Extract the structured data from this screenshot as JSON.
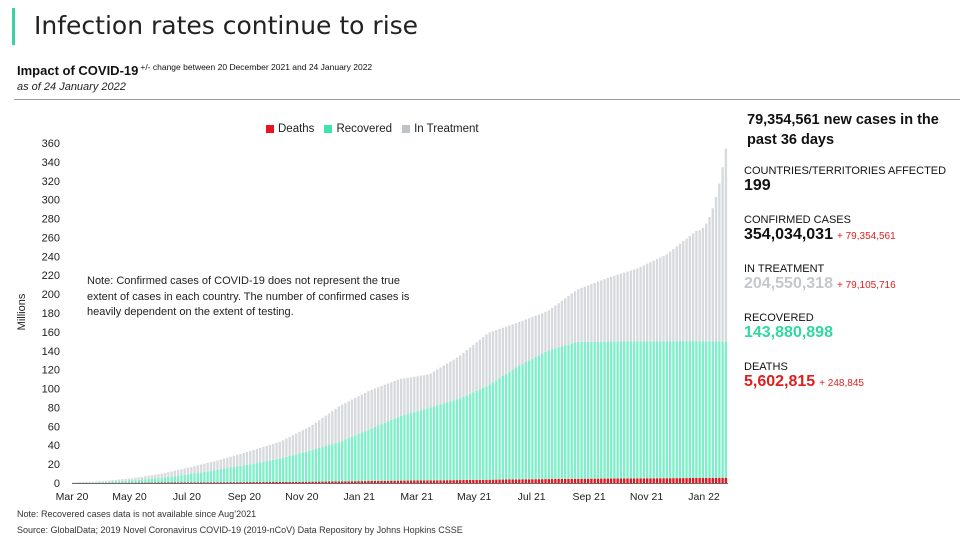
{
  "header": {
    "title": "Infection rates continue to rise",
    "subtitle": "Impact of COVID-19",
    "change_note": "+/- change between 20 December 2021 and 24 January 2022",
    "as_of": "as of 24 January 2022"
  },
  "colors": {
    "accent": "#3ecfa7",
    "deaths": "#e8141e",
    "recovered": "#7fefc9",
    "in_treatment": "#d7dadd",
    "treatment_value": "#c4c8cc",
    "recovered_value": "#2fd9a0",
    "deaths_value": "#e02020"
  },
  "note": "Note: Confirmed cases of COVID-19 does not represent the true extent of cases in each country. The number of confirmed cases is heavily dependent on the extent of testing.",
  "footnote": "Note: Recovered cases data is not available since Aug’2021",
  "source": "Source: GlobalData; 2019 Novel Coronavirus COVID-19 (2019-nCoV) Data Repository by Johns Hopkins CSSE",
  "stats": {
    "headline": "79,354,561 new cases in the past 36 days",
    "countries_label": "COUNTRIES/TERRITORIES AFFECTED",
    "countries_value": "199",
    "confirmed_label": "CONFIRMED CASES",
    "confirmed_value": "354,034,031",
    "confirmed_change": "+ 79,354,561",
    "treatment_label": "IN TREATMENT",
    "treatment_value": "204,550,318",
    "treatment_change": "+ 79,105,716",
    "recovered_label": "RECOVERED",
    "recovered_value": "143,880,898",
    "deaths_label": "DEATHS",
    "deaths_value": "5,602,815",
    "deaths_change": "+ 248,845"
  },
  "chart_data": {
    "type": "bar",
    "stacked": true,
    "ylabel": "Millions",
    "ylim": [
      0,
      360
    ],
    "yticks": [
      "0",
      "20",
      "40",
      "60",
      "80",
      "100",
      "120",
      "140",
      "160",
      "180",
      "200",
      "220",
      "240",
      "260",
      "280",
      "300",
      "320",
      "340",
      "360"
    ],
    "xtick_labels": [
      "Mar 20",
      "May 20",
      "Jul 20",
      "Sep 20",
      "Nov 20",
      "Jan 21",
      "Mar 21",
      "May 21",
      "Jul 21",
      "Sep 21",
      "Nov 21",
      "Jan 22"
    ],
    "legend": [
      "Deaths",
      "Recovered",
      "In Treatment"
    ],
    "legend_position": "top-center",
    "grid": false,
    "categories": [
      "Mar 20",
      "Apr 20",
      "May 20",
      "Jun 20",
      "Jul 20",
      "Aug 20",
      "Sep 20",
      "Oct 20",
      "Nov 20",
      "Dec 20",
      "Jan 21",
      "Feb 21",
      "Mar 21",
      "Apr 21",
      "May 21",
      "Jun 21",
      "Jul 21",
      "Aug 21",
      "Sep 21",
      "Oct 21",
      "Nov 21",
      "Dec 21",
      "Jan 22"
    ],
    "series": [
      {
        "name": "Deaths",
        "values": [
          0.04,
          0.2,
          0.35,
          0.5,
          0.65,
          0.8,
          0.95,
          1.1,
          1.35,
          1.7,
          2.1,
          2.5,
          2.75,
          3.1,
          3.45,
          3.85,
          4.15,
          4.45,
          4.7,
          4.9,
          5.1,
          5.3,
          5.6
        ]
      },
      {
        "name": "Recovered",
        "values": [
          0.2,
          0.8,
          2.5,
          5,
          9,
          14,
          19,
          25,
          33,
          42,
          55,
          68,
          77,
          86,
          100,
          120,
          136,
          145,
          145,
          145,
          145,
          145,
          144
        ]
      },
      {
        "name": "In Treatment",
        "values": [
          0.36,
          1.0,
          2.2,
          4.5,
          7.4,
          10.2,
          14.1,
          17.9,
          25.7,
          38.3,
          40.9,
          39.5,
          35.3,
          44.9,
          55.6,
          46.2,
          41.9,
          55.6,
          67.3,
          77.1,
          91.9,
          116.7,
          204.6
        ]
      }
    ]
  }
}
